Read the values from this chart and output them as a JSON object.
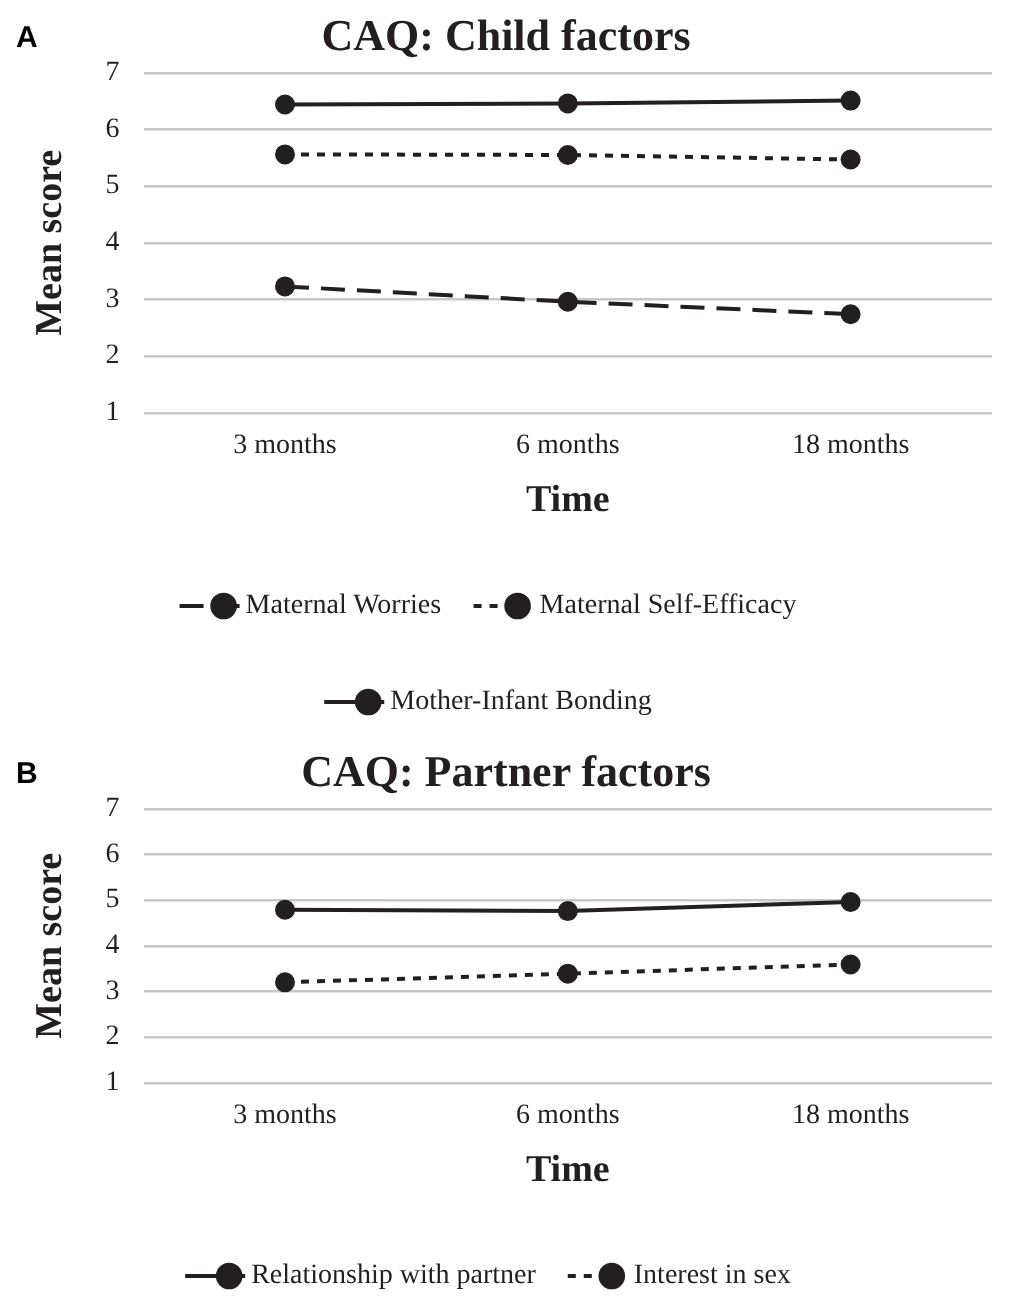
{
  "chart_data": [
    {
      "type": "line",
      "title": "CAQ: Child factors",
      "xlabel": "Time",
      "ylabel": "Mean score",
      "annotations": [
        "A"
      ],
      "categories": [
        "3 months",
        "6 months",
        "18 months"
      ],
      "series": [
        {
          "name": "Maternal Worries",
          "color": "#231f20",
          "values": [
            3.23,
            2.96,
            2.74
          ],
          "line_style": "dashed"
        },
        {
          "name": "Maternal Self-Efficacy",
          "color": "#231f20",
          "values": [
            5.56,
            5.55,
            5.47
          ],
          "line_style": "dotted"
        },
        {
          "name": "Mother-Infant Bonding",
          "color": "#231f20",
          "values": [
            6.44,
            6.46,
            6.51
          ],
          "line_style": "solid"
        }
      ],
      "ylim": [
        1,
        7
      ],
      "yticks": [
        1,
        2,
        3,
        4,
        5,
        6,
        7
      ],
      "grid": "y",
      "legend": "bottom",
      "marker": "circle"
    },
    {
      "type": "line",
      "title": "CAQ: Partner factors",
      "xlabel": "Time",
      "ylabel": "Mean score",
      "annotations": [
        "B"
      ],
      "categories": [
        "3 months",
        "6 months",
        "18 months"
      ],
      "series": [
        {
          "name": "Relationship with partner",
          "color": "#231f20",
          "values": [
            4.79,
            4.76,
            4.96
          ],
          "line_style": "solid"
        },
        {
          "name": "Interest in sex",
          "color": "#231f20",
          "values": [
            3.2,
            3.39,
            3.59
          ],
          "line_style": "dotted"
        }
      ],
      "ylim": [
        1,
        7
      ],
      "yticks": [
        1,
        2,
        3,
        4,
        5,
        6,
        7
      ],
      "grid": "y",
      "legend": "bottom",
      "marker": "circle"
    }
  ]
}
